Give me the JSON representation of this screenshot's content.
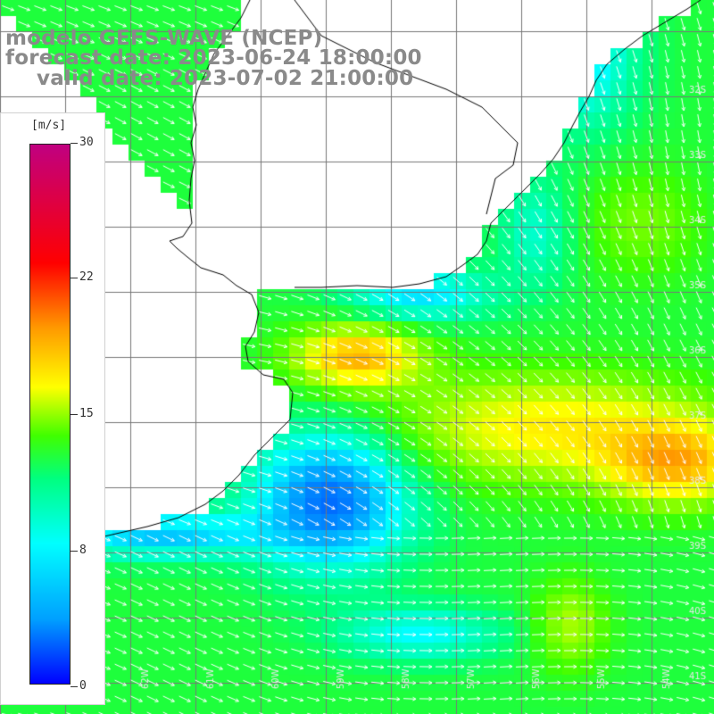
{
  "header": {
    "model_line": "modelo GEFS-WAVE (NCEP)",
    "forecast_line": "forecast date: 2023-06-24 18:00:00",
    "valid_line": "valid date: 2023-07-02 21:00:00"
  },
  "legend": {
    "units": "[m/s]",
    "ticks": [
      "30",
      "22",
      "15",
      "8",
      "0"
    ],
    "colors": [
      "#0000ff",
      "#00a0ff",
      "#00ffff",
      "#00ff80",
      "#40ff00",
      "#ffff00",
      "#ff9900",
      "#ff0000",
      "#c00080"
    ]
  },
  "map": {
    "lat_labels": [
      "32S",
      "33S",
      "34S",
      "35S",
      "36S",
      "37S",
      "38S",
      "39S",
      "40S",
      "41S"
    ],
    "lon_labels": [
      "64W",
      "63W",
      "62W",
      "61W",
      "60W",
      "59W",
      "58W",
      "57W",
      "56W",
      "55W",
      "54W"
    ]
  }
}
